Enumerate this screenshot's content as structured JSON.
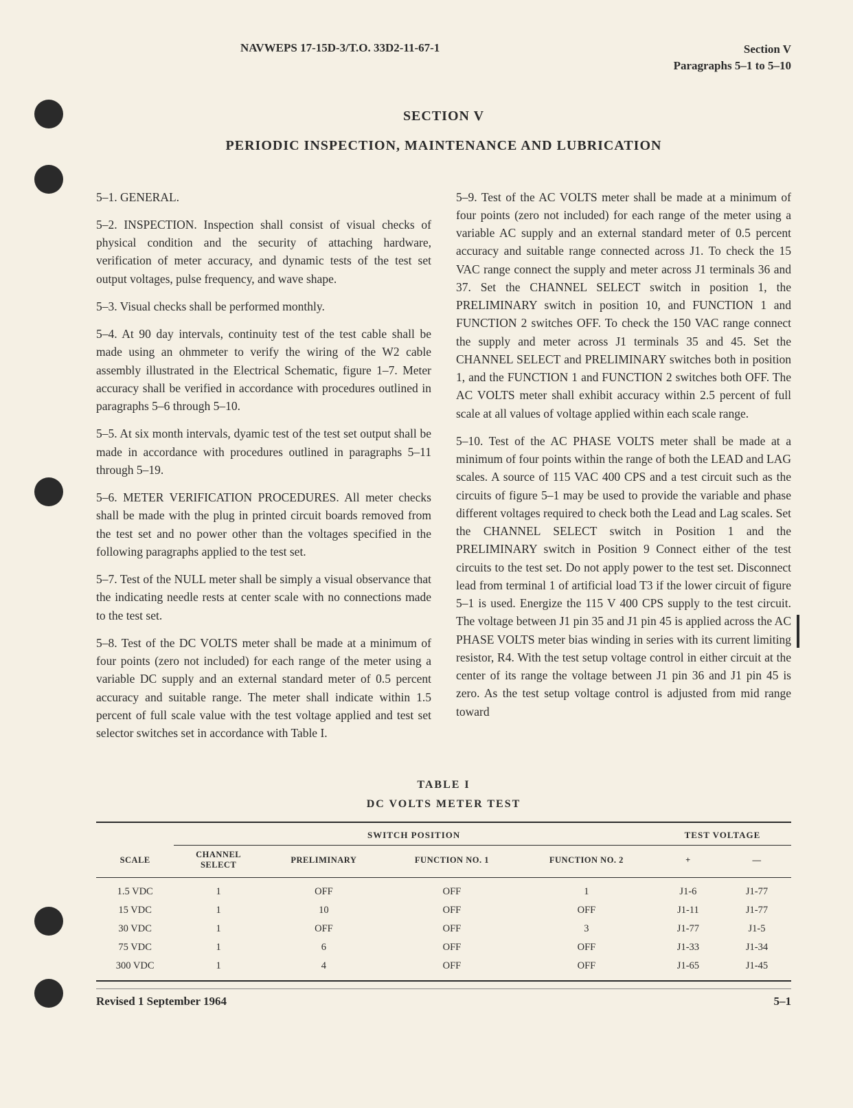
{
  "header": {
    "doc_id": "NAVWEPS 17-15D-3/T.O. 33D2-11-67-1",
    "section": "Section V",
    "paragraphs": "Paragraphs 5–1 to 5–10"
  },
  "section_heading": "SECTION V",
  "section_subheading": "PERIODIC INSPECTION, MAINTENANCE AND LUBRICATION",
  "left_col": {
    "p1": "5–1. GENERAL.",
    "p2": "5–2. INSPECTION. Inspection shall consist of visual checks of physical condition and the security of attaching hardware, verification of meter accuracy, and dynamic tests of the test set output voltages, pulse frequency, and wave shape.",
    "p3": "5–3. Visual checks shall be performed monthly.",
    "p4": "5–4. At 90 day intervals, continuity test of the test cable shall be made using an ohmmeter to verify the wiring of the W2 cable assembly illustrated in the Electrical Schematic, figure 1–7. Meter accuracy shall be verified in accordance with procedures outlined in paragraphs 5–6 through 5–10.",
    "p5": "5–5. At six month intervals, dyamic test of the test set output shall be made in accordance with procedures outlined in paragraphs 5–11 through 5–19.",
    "p6": "5–6. METER VERIFICATION PROCEDURES. All meter checks shall be made with the plug in printed circuit boards removed from the test set and no power other than the voltages specified in the following paragraphs applied to the test set.",
    "p7": "5–7. Test of the NULL meter shall be simply a visual observance that the indicating needle rests at center scale with no connections made to the test set.",
    "p8": "5–8. Test of the DC VOLTS meter shall be made at a minimum of four points (zero not included) for each range of the meter using a variable DC supply and an external standard meter of 0.5 percent accuracy and suitable range. The meter shall indicate within 1.5 percent of full scale value with the test voltage applied and test set selector switches set in accordance with Table I."
  },
  "right_col": {
    "p1": "5–9. Test of the AC VOLTS meter shall be made at a minimum of four points (zero not included) for each range of the meter using a variable AC supply and an external standard meter of 0.5 percent accuracy and suitable range connected across J1. To check the 15 VAC range connect the supply and meter across J1 terminals 36 and 37. Set the CHANNEL SELECT switch in position 1, the PRELIMINARY switch in position 10, and FUNCTION 1 and FUNCTION 2 switches OFF. To check the 150 VAC range connect the supply and meter across J1 terminals 35 and 45. Set the CHANNEL SELECT and PRELIMINARY switches both in position 1, and the FUNCTION 1 and FUNCTION 2 switches both OFF. The AC VOLTS meter shall exhibit accuracy within 2.5 percent of full scale at all values of voltage applied within each scale range.",
    "p2": "5–10. Test of the AC PHASE VOLTS meter shall be made at a minimum of four points within the range of both the LEAD and LAG scales. A source of 115 VAC 400 CPS and a test circuit such as the circuits of figure 5–1 may be used to provide the variable and phase different voltages required to check both the Lead and Lag scales. Set the CHANNEL SELECT switch in Position 1 and the PRELIMINARY switch in Position 9 Connect either of the test circuits to the test set. Do not apply power to the test set. Disconnect lead from terminal 1 of artificial load T3 if the lower circuit of figure 5–1 is used. Energize the 115 V 400 CPS supply to the test circuit. The voltage between J1 pin 35 and J1 pin 45 is applied across the AC PHASE VOLTS meter bias winding in series with its current limiting resistor, R4. With the test setup voltage control in either circuit at the center of its range the voltage between J1 pin 36 and J1 pin 45 is zero. As the test setup voltage control is adjusted from mid range toward"
  },
  "table": {
    "title": "TABLE I",
    "subtitle": "DC VOLTS METER TEST",
    "group_headers": {
      "switch_position": "SWITCH POSITION",
      "test_voltage": "TEST VOLTAGE"
    },
    "columns": {
      "scale": "SCALE",
      "channel_select": "CHANNEL SELECT",
      "preliminary": "PRELIMINARY",
      "function1": "FUNCTION NO. 1",
      "function2": "FUNCTION NO. 2",
      "plus": "+",
      "minus": "—"
    },
    "rows": [
      {
        "scale": "1.5 VDC",
        "cs": "1",
        "pre": "OFF",
        "f1": "OFF",
        "f2": "1",
        "plus": "J1-6",
        "minus": "J1-77"
      },
      {
        "scale": "15 VDC",
        "cs": "1",
        "pre": "10",
        "f1": "OFF",
        "f2": "OFF",
        "plus": "J1-11",
        "minus": "J1-77"
      },
      {
        "scale": "30 VDC",
        "cs": "1",
        "pre": "OFF",
        "f1": "OFF",
        "f2": "3",
        "plus": "J1-77",
        "minus": "J1-5"
      },
      {
        "scale": "75 VDC",
        "cs": "1",
        "pre": "6",
        "f1": "OFF",
        "f2": "OFF",
        "plus": "J1-33",
        "minus": "J1-34"
      },
      {
        "scale": "300 VDC",
        "cs": "1",
        "pre": "4",
        "f1": "OFF",
        "f2": "OFF",
        "plus": "J1-65",
        "minus": "J1-45"
      }
    ]
  },
  "footer": {
    "revised": "Revised 1 September 1964",
    "page": "5–1"
  }
}
